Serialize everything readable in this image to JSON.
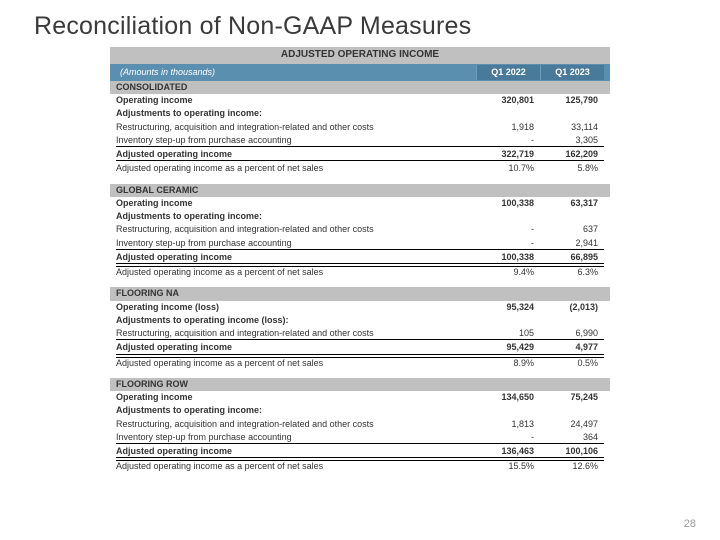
{
  "title": "Reconciliation of Non-GAAP Measures",
  "banner": "ADJUSTED OPERATING INCOME",
  "header": {
    "amounts": "(Amounts in thousands)",
    "q1": "Q1 2022",
    "q2": "Q1 2023"
  },
  "page": "28",
  "sections": [
    {
      "name": "CONSOLIDATED",
      "rows": [
        {
          "label": "Operating income",
          "v1": "320,801",
          "v2": "125,790",
          "bold": true
        },
        {
          "label": "Adjustments to operating income:",
          "v1": "",
          "v2": "",
          "bold": true
        },
        {
          "label": "Restructuring, acquisition and integration-related and other costs",
          "v1": "1,918",
          "v2": "33,114"
        },
        {
          "label": "Inventory step-up from purchase accounting",
          "v1": "-",
          "v2": "3,305",
          "underline": true
        },
        {
          "label": "Adjusted operating income",
          "v1": "322,719",
          "v2": "162,209",
          "bold": true,
          "underline": true
        },
        {
          "label": "Adjusted operating income as a percent of net sales",
          "v1": "10.7%",
          "v2": "5.8%"
        }
      ]
    },
    {
      "name": "GLOBAL CERAMIC",
      "rows": [
        {
          "label": "Operating income",
          "v1": "100,338",
          "v2": "63,317",
          "bold": true
        },
        {
          "label": "Adjustments to operating income:",
          "v1": "",
          "v2": "",
          "bold": true
        },
        {
          "label": "Restructuring, acquisition and integration-related and other costs",
          "v1": "-",
          "v2": "637"
        },
        {
          "label": "Inventory step-up from purchase accounting",
          "v1": "-",
          "v2": "2,941",
          "underline": true
        },
        {
          "label": "Adjusted operating income",
          "v1": "100,338",
          "v2": "66,895",
          "bold": true,
          "underline": true
        },
        {
          "label": "Adjusted operating income as a percent of net sales",
          "v1": "9.4%",
          "v2": "6.3%",
          "topborder": true
        }
      ]
    },
    {
      "name": "FLOORING NA",
      "rows": [
        {
          "label": "Operating income (loss)",
          "v1": "95,324",
          "v2": "(2,013)",
          "bold": true
        },
        {
          "label": "Adjustments to operating income (loss):",
          "v1": "",
          "v2": "",
          "bold": true
        },
        {
          "label": "Restructuring, acquisition and integration-related and other costs",
          "v1": "105",
          "v2": "6,990",
          "underline": true
        },
        {
          "label": "Adjusted operating income",
          "v1": "95,429",
          "v2": "4,977",
          "bold": true,
          "underline": true
        },
        {
          "label": "Adjusted operating income as a percent of net sales",
          "v1": "8.9%",
          "v2": "0.5%",
          "topborder": true
        }
      ]
    },
    {
      "name": "FLOORING ROW",
      "rows": [
        {
          "label": "Operating income",
          "v1": "134,650",
          "v2": "75,245",
          "bold": true
        },
        {
          "label": "Adjustments to operating income:",
          "v1": "",
          "v2": "",
          "bold": true
        },
        {
          "label": "Restructuring, acquisition and integration-related and other costs",
          "v1": "1,813",
          "v2": "24,497"
        },
        {
          "label": "Inventory step-up from purchase accounting",
          "v1": "-",
          "v2": "364",
          "underline": true
        },
        {
          "label": "Adjusted operating income",
          "v1": "136,463",
          "v2": "100,106",
          "bold": true,
          "underline": true
        },
        {
          "label": "Adjusted operating income as a percent of net sales",
          "v1": "15.5%",
          "v2": "12.6%",
          "topborder": true
        }
      ]
    }
  ]
}
